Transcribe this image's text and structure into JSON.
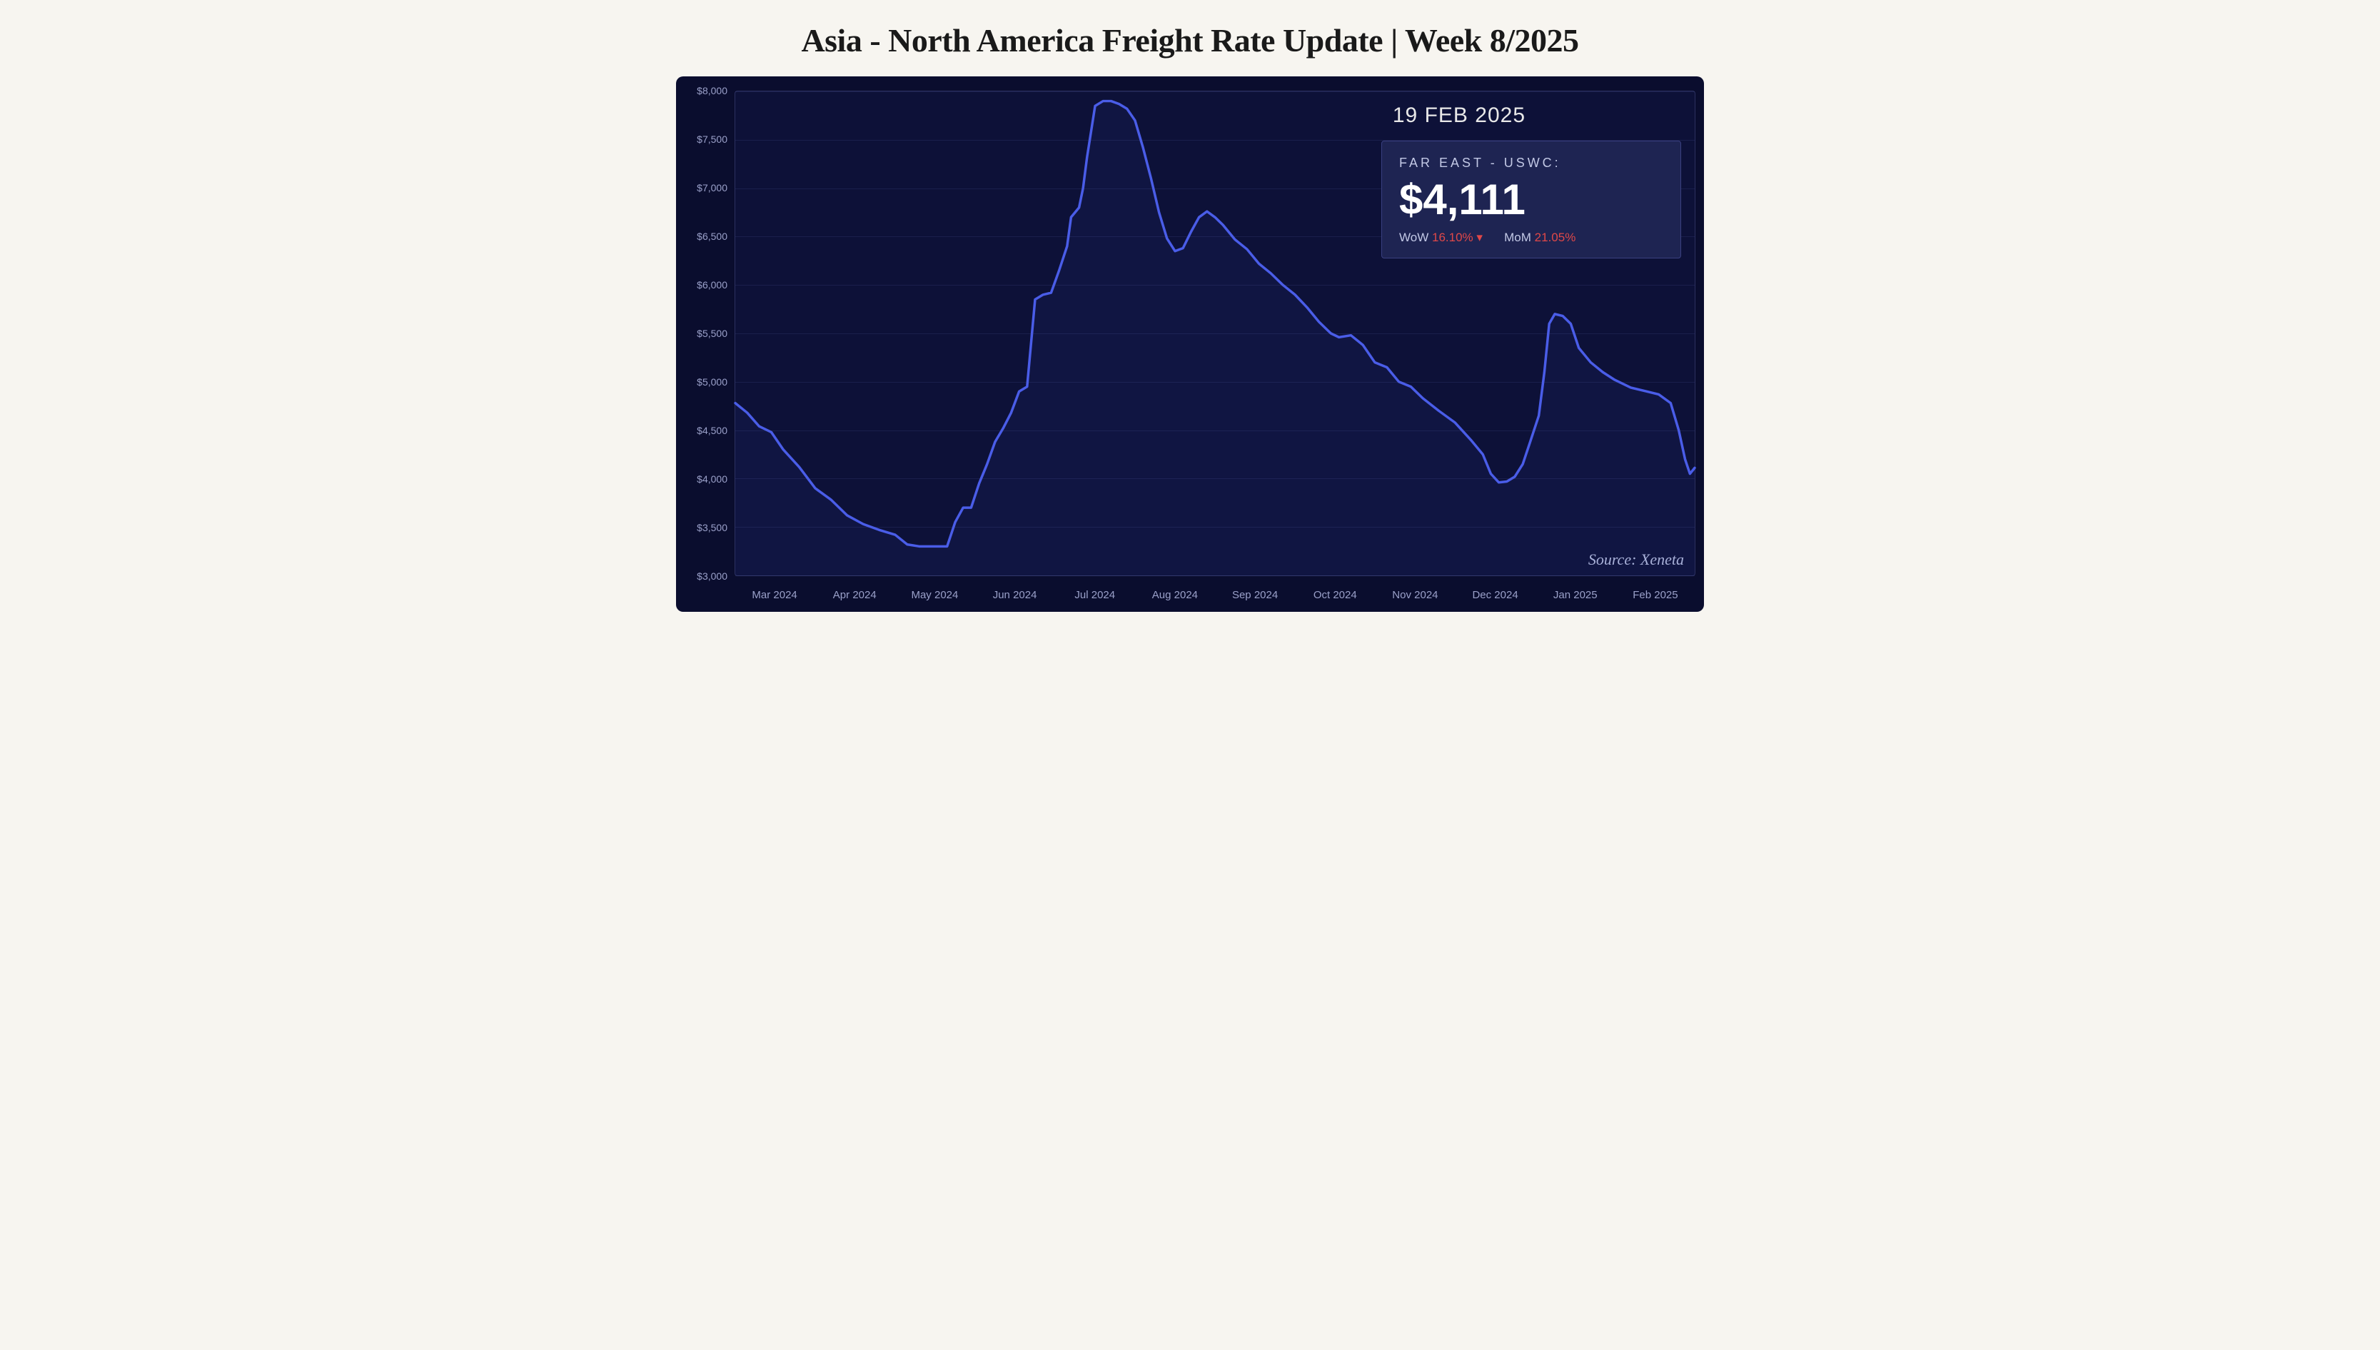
{
  "title": "Asia - North America Freight Rate Update | Week 8/2025",
  "chart": {
    "type": "line",
    "background_color": "#0a0d2e",
    "plot_background_color": "#0d1138",
    "border_color": "#2b3060",
    "line_color": "#4a5de8",
    "line_width": 3.5,
    "grid_color": "rgba(90,100,170,0.18)",
    "axis_label_color": "#9aa0c9",
    "axis_label_fontsize": 14,
    "ylim": [
      3000,
      8000
    ],
    "ytick_step": 500,
    "y_ticks": [
      {
        "v": 3000,
        "label": "$3,000"
      },
      {
        "v": 3500,
        "label": "$3,500"
      },
      {
        "v": 4000,
        "label": "$4,000"
      },
      {
        "v": 4500,
        "label": "$4,500"
      },
      {
        "v": 5000,
        "label": "$5,000"
      },
      {
        "v": 5500,
        "label": "$5,500"
      },
      {
        "v": 6000,
        "label": "$6,000"
      },
      {
        "v": 6500,
        "label": "$6,500"
      },
      {
        "v": 7000,
        "label": "$7,000"
      },
      {
        "v": 7500,
        "label": "$7,500"
      },
      {
        "v": 8000,
        "label": "$8,000"
      }
    ],
    "x_ticks": [
      {
        "i": 0.5,
        "label": "Mar 2024"
      },
      {
        "i": 1.5,
        "label": "Apr 2024"
      },
      {
        "i": 2.5,
        "label": "May 2024"
      },
      {
        "i": 3.5,
        "label": "Jun 2024"
      },
      {
        "i": 4.5,
        "label": "Jul 2024"
      },
      {
        "i": 5.5,
        "label": "Aug 2024"
      },
      {
        "i": 6.5,
        "label": "Sep 2024"
      },
      {
        "i": 7.5,
        "label": "Oct 2024"
      },
      {
        "i": 8.5,
        "label": "Nov 2024"
      },
      {
        "i": 9.5,
        "label": "Dec 2024"
      },
      {
        "i": 10.5,
        "label": "Jan 2025"
      },
      {
        "i": 11.5,
        "label": "Feb 2025"
      }
    ],
    "x_domain": [
      0,
      12
    ],
    "series": [
      {
        "x": 0.0,
        "y": 4780
      },
      {
        "x": 0.15,
        "y": 4680
      },
      {
        "x": 0.3,
        "y": 4540
      },
      {
        "x": 0.45,
        "y": 4480
      },
      {
        "x": 0.6,
        "y": 4300
      },
      {
        "x": 0.8,
        "y": 4120
      },
      {
        "x": 1.0,
        "y": 3900
      },
      {
        "x": 1.2,
        "y": 3780
      },
      {
        "x": 1.4,
        "y": 3620
      },
      {
        "x": 1.6,
        "y": 3530
      },
      {
        "x": 1.8,
        "y": 3470
      },
      {
        "x": 2.0,
        "y": 3420
      },
      {
        "x": 2.15,
        "y": 3320
      },
      {
        "x": 2.3,
        "y": 3300
      },
      {
        "x": 2.5,
        "y": 3300
      },
      {
        "x": 2.65,
        "y": 3300
      },
      {
        "x": 2.75,
        "y": 3550
      },
      {
        "x": 2.85,
        "y": 3700
      },
      {
        "x": 2.95,
        "y": 3700
      },
      {
        "x": 3.05,
        "y": 3950
      },
      {
        "x": 3.15,
        "y": 4150
      },
      {
        "x": 3.25,
        "y": 4380
      },
      {
        "x": 3.35,
        "y": 4520
      },
      {
        "x": 3.45,
        "y": 4680
      },
      {
        "x": 3.55,
        "y": 4900
      },
      {
        "x": 3.65,
        "y": 4950
      },
      {
        "x": 3.75,
        "y": 5850
      },
      {
        "x": 3.85,
        "y": 5900
      },
      {
        "x": 3.95,
        "y": 5920
      },
      {
        "x": 4.05,
        "y": 6150
      },
      {
        "x": 4.15,
        "y": 6400
      },
      {
        "x": 4.2,
        "y": 6700
      },
      {
        "x": 4.3,
        "y": 6800
      },
      {
        "x": 4.35,
        "y": 7000
      },
      {
        "x": 4.4,
        "y": 7320
      },
      {
        "x": 4.5,
        "y": 7850
      },
      {
        "x": 4.6,
        "y": 7900
      },
      {
        "x": 4.7,
        "y": 7900
      },
      {
        "x": 4.8,
        "y": 7870
      },
      {
        "x": 4.9,
        "y": 7820
      },
      {
        "x": 5.0,
        "y": 7700
      },
      {
        "x": 5.1,
        "y": 7420
      },
      {
        "x": 5.2,
        "y": 7100
      },
      {
        "x": 5.3,
        "y": 6750
      },
      {
        "x": 5.4,
        "y": 6480
      },
      {
        "x": 5.5,
        "y": 6350
      },
      {
        "x": 5.6,
        "y": 6380
      },
      {
        "x": 5.7,
        "y": 6550
      },
      {
        "x": 5.8,
        "y": 6700
      },
      {
        "x": 5.9,
        "y": 6760
      },
      {
        "x": 6.0,
        "y": 6700
      },
      {
        "x": 6.1,
        "y": 6620
      },
      {
        "x": 6.25,
        "y": 6470
      },
      {
        "x": 6.4,
        "y": 6370
      },
      {
        "x": 6.55,
        "y": 6220
      },
      {
        "x": 6.7,
        "y": 6120
      },
      {
        "x": 6.85,
        "y": 6000
      },
      {
        "x": 7.0,
        "y": 5900
      },
      {
        "x": 7.15,
        "y": 5770
      },
      {
        "x": 7.3,
        "y": 5620
      },
      {
        "x": 7.45,
        "y": 5500
      },
      {
        "x": 7.55,
        "y": 5460
      },
      {
        "x": 7.7,
        "y": 5480
      },
      {
        "x": 7.85,
        "y": 5380
      },
      {
        "x": 8.0,
        "y": 5200
      },
      {
        "x": 8.15,
        "y": 5150
      },
      {
        "x": 8.3,
        "y": 5000
      },
      {
        "x": 8.45,
        "y": 4950
      },
      {
        "x": 8.6,
        "y": 4830
      },
      {
        "x": 8.8,
        "y": 4700
      },
      {
        "x": 9.0,
        "y": 4580
      },
      {
        "x": 9.2,
        "y": 4400
      },
      {
        "x": 9.35,
        "y": 4250
      },
      {
        "x": 9.45,
        "y": 4050
      },
      {
        "x": 9.55,
        "y": 3960
      },
      {
        "x": 9.65,
        "y": 3970
      },
      {
        "x": 9.75,
        "y": 4020
      },
      {
        "x": 9.85,
        "y": 4150
      },
      {
        "x": 9.95,
        "y": 4400
      },
      {
        "x": 10.05,
        "y": 4650
      },
      {
        "x": 10.12,
        "y": 5100
      },
      {
        "x": 10.18,
        "y": 5600
      },
      {
        "x": 10.25,
        "y": 5700
      },
      {
        "x": 10.35,
        "y": 5680
      },
      {
        "x": 10.45,
        "y": 5600
      },
      {
        "x": 10.55,
        "y": 5350
      },
      {
        "x": 10.7,
        "y": 5200
      },
      {
        "x": 10.85,
        "y": 5100
      },
      {
        "x": 11.0,
        "y": 5020
      },
      {
        "x": 11.2,
        "y": 4940
      },
      {
        "x": 11.4,
        "y": 4900
      },
      {
        "x": 11.55,
        "y": 4870
      },
      {
        "x": 11.7,
        "y": 4780
      },
      {
        "x": 11.8,
        "y": 4500
      },
      {
        "x": 11.88,
        "y": 4200
      },
      {
        "x": 11.94,
        "y": 4050
      },
      {
        "x": 12.0,
        "y": 4111
      }
    ]
  },
  "date_label": "19 FEB 2025",
  "stat_box": {
    "route_label": "FAR EAST - USWC:",
    "price": "$4,111",
    "wow_label": "WoW",
    "wow_value": "16.10%",
    "wow_arrow": "▾",
    "mom_label": "MoM",
    "mom_value": "21.05%",
    "label_color": "#c3c9e6",
    "value_color": "#e04848",
    "background": "#1e2452",
    "border_color": "#3a4080",
    "route_fontsize": 18,
    "price_fontsize": 60
  },
  "source_label": "Source: Xeneta"
}
